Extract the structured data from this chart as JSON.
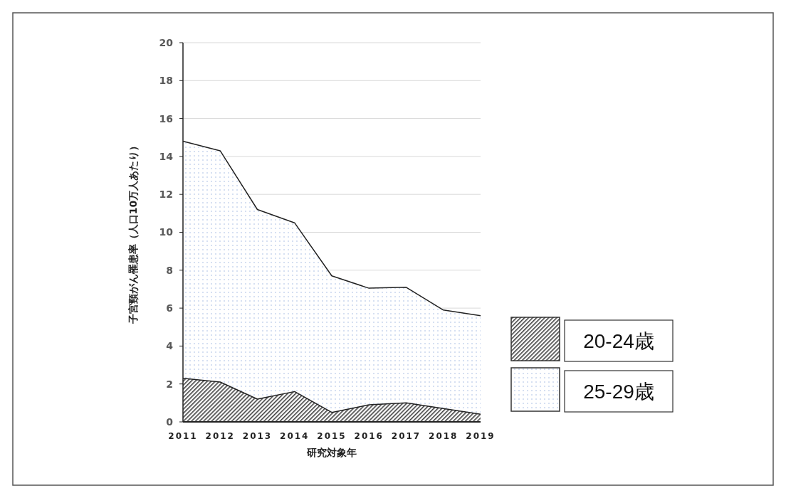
{
  "chart_data": {
    "type": "area",
    "xlabel": "研究対象年",
    "ylabel": "子宮頸がん罹患率（人口10万人あたり）",
    "categories": [
      "2011",
      "2012",
      "2013",
      "2014",
      "2015",
      "2016",
      "2017",
      "2018",
      "2019"
    ],
    "series": [
      {
        "name": "25-29歳",
        "color": "#8faadc",
        "values": [
          14.8,
          14.3,
          11.2,
          10.5,
          7.7,
          7.05,
          7.1,
          5.9,
          5.6
        ]
      },
      {
        "name": "20-24歳",
        "color": "#404040",
        "values": [
          2.3,
          2.1,
          1.2,
          1.6,
          0.5,
          0.9,
          1.0,
          0.7,
          0.4
        ]
      }
    ],
    "ylim": [
      0,
      20
    ],
    "yticks": [
      0,
      2,
      4,
      6,
      8,
      10,
      12,
      14,
      16,
      18,
      20
    ],
    "grid": "y",
    "legend": "right"
  }
}
